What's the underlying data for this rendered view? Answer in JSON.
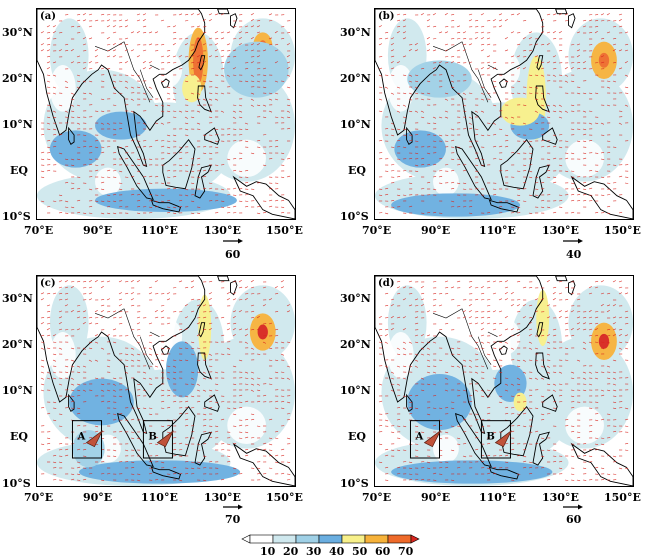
{
  "panels": [
    {
      "id": "a",
      "label": "(a)",
      "scale": "60",
      "boxes": []
    },
    {
      "id": "b",
      "label": "(b)",
      "scale": "40",
      "boxes": []
    },
    {
      "id": "c",
      "label": "(c)",
      "scale": "70",
      "boxes": [
        "A",
        "B"
      ]
    },
    {
      "id": "d",
      "label": "(d)",
      "scale": "60",
      "boxes": [
        "A",
        "B"
      ]
    }
  ],
  "lat_labels": [
    "30°N",
    "20°N",
    "10°N",
    "EQ",
    "10°S"
  ],
  "lon_labels": [
    "70°E",
    "90°E",
    "110°E",
    "130°E",
    "150°E"
  ],
  "colorbar": {
    "values": [
      "10",
      "20",
      "30",
      "40",
      "50",
      "60",
      "70"
    ],
    "colors": [
      "#cfe8ee",
      "#9fd0e6",
      "#6aaee0",
      "#f7f08a",
      "#f6b23a",
      "#ee6a2a",
      "#d8251e"
    ]
  }
}
